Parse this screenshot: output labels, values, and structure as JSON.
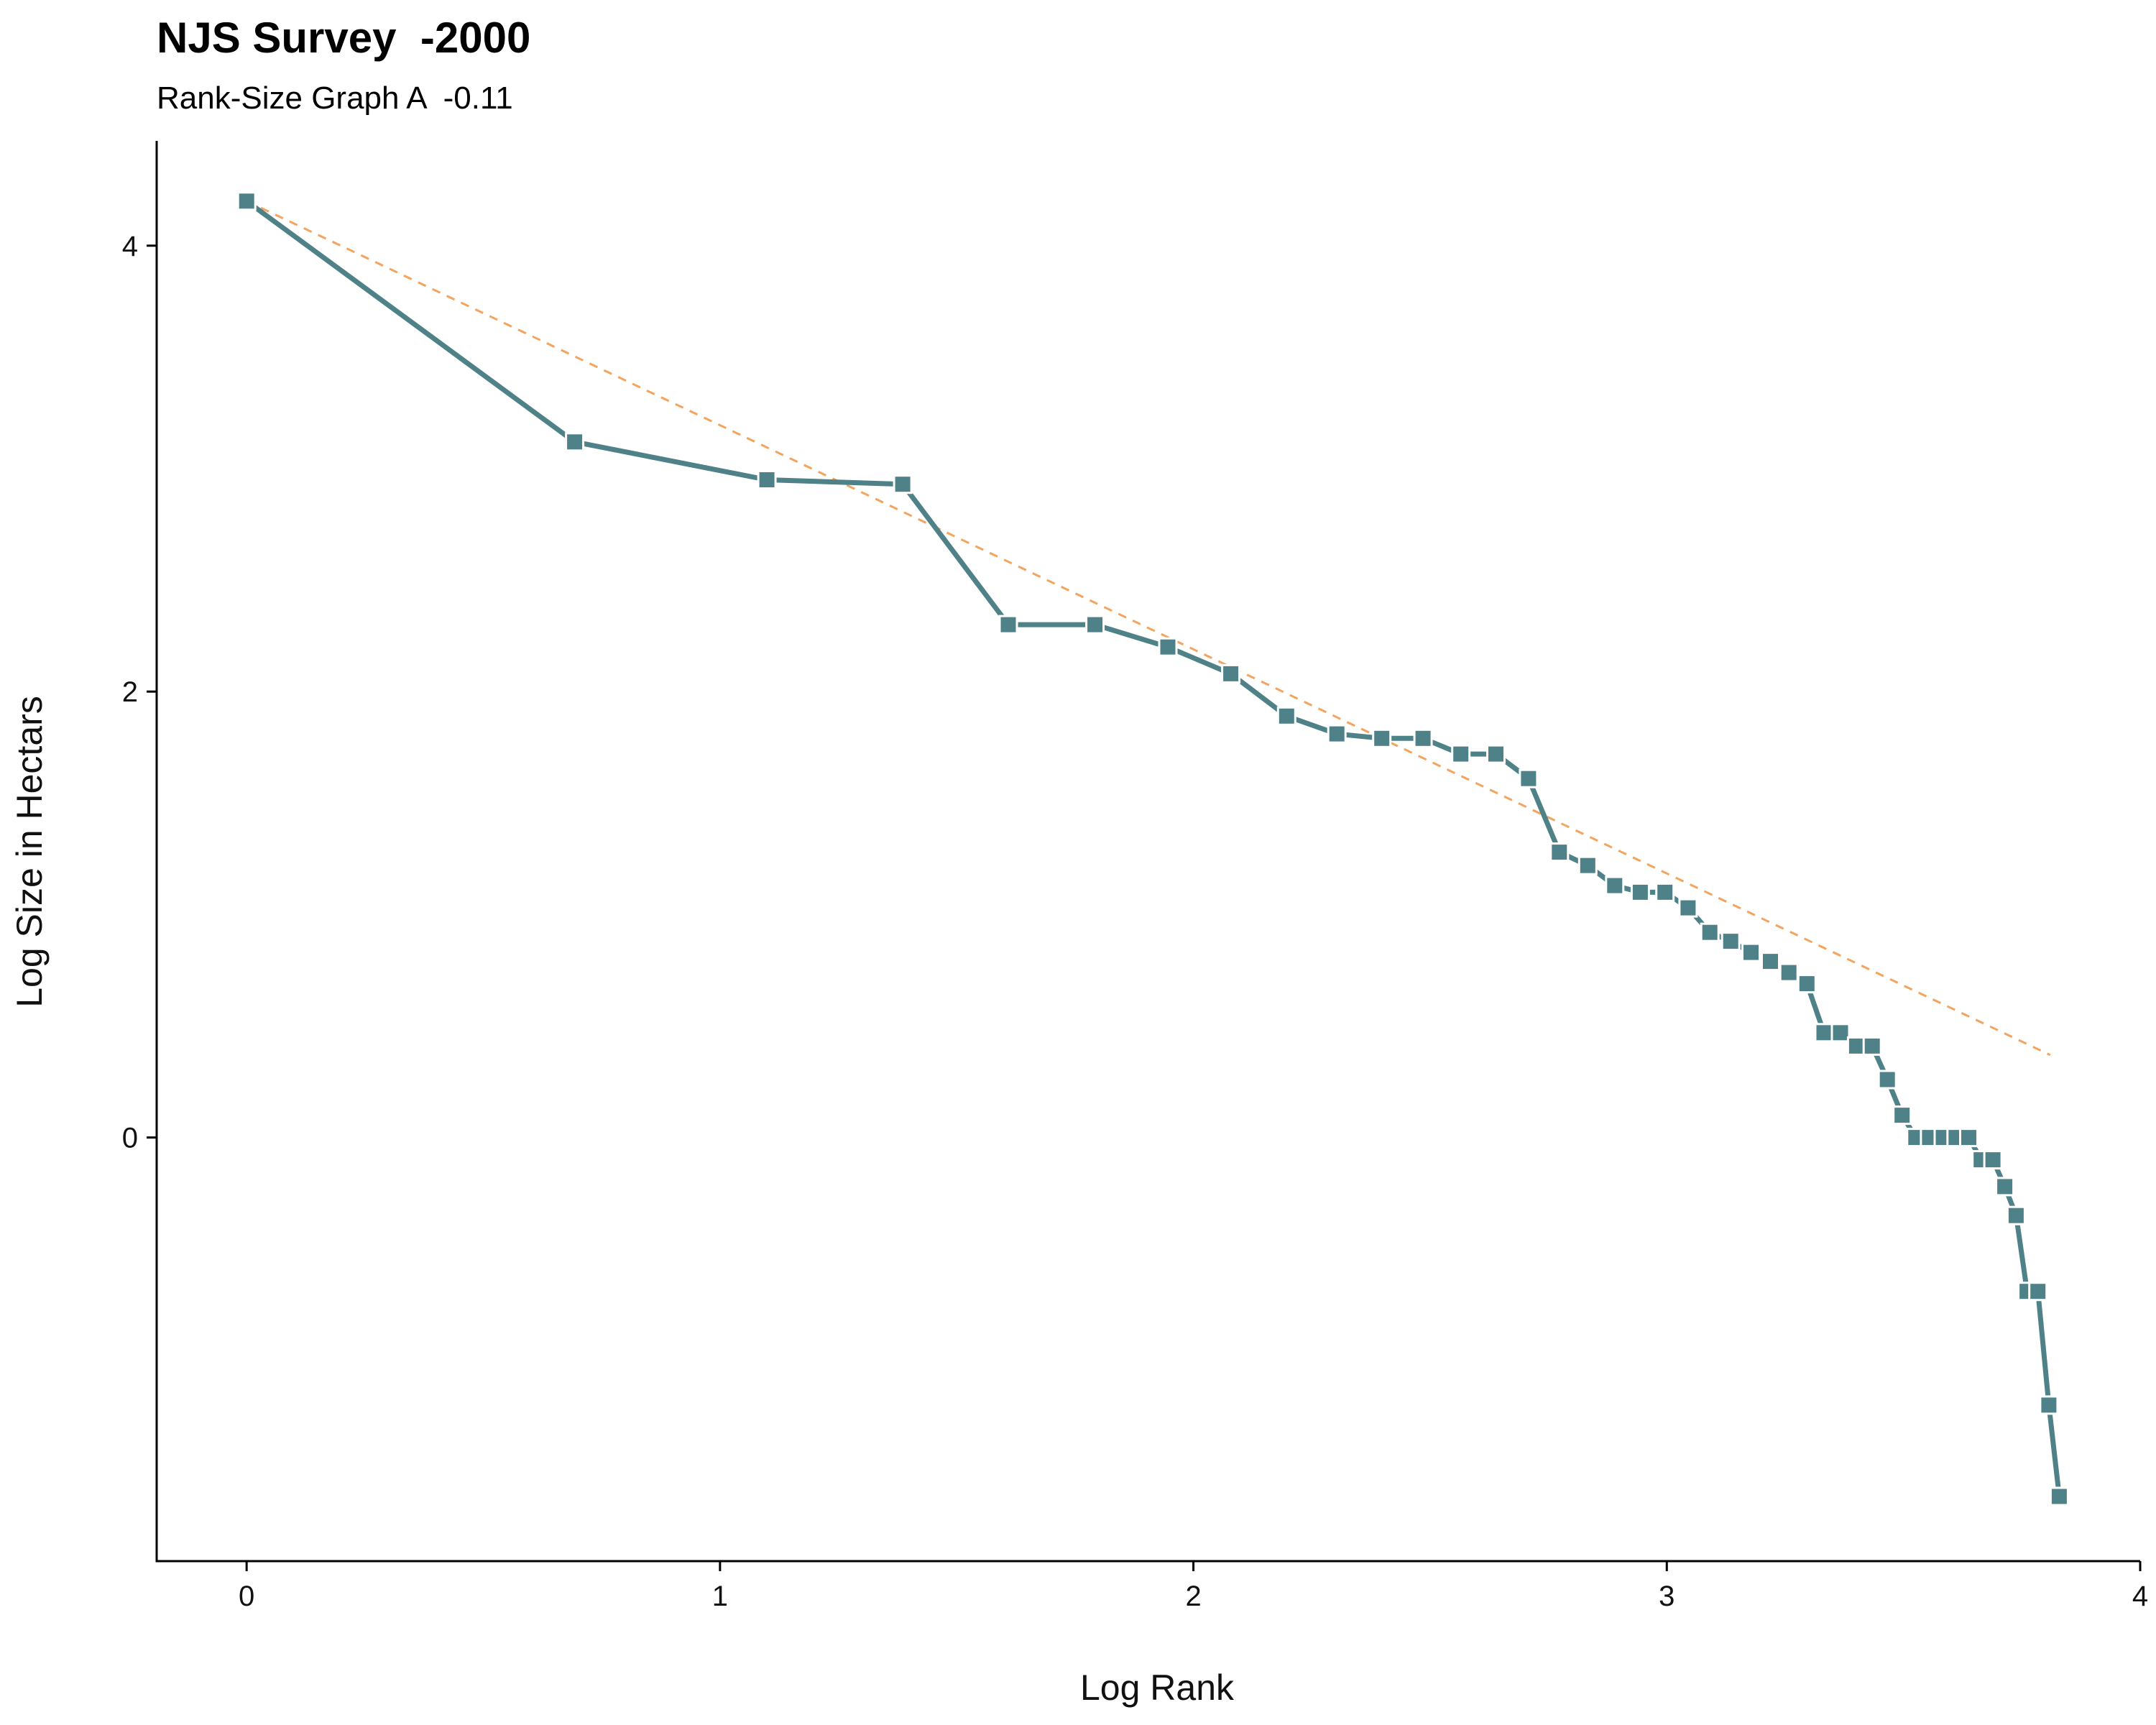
{
  "chart_data": {
    "type": "line",
    "title": "NJS Survey  -2000",
    "subtitle": "Rank-Size Graph A  -0.11",
    "xlabel": "Log Rank",
    "ylabel": "Log Size in Hectars",
    "xlim": [
      -0.19,
      4.0
    ],
    "ylim": [
      -1.9,
      4.47
    ],
    "x_ticks": [
      0,
      1,
      2,
      3,
      4
    ],
    "y_ticks": [
      0,
      2,
      4
    ],
    "grid": false,
    "legend": "none",
    "colors": {
      "observed": "#4f8288",
      "expected": "#f3a45f"
    },
    "series": [
      {
        "style": "solid-line-square-markers",
        "x": [
          0,
          0.693,
          1.099,
          1.386,
          1.609,
          1.792,
          1.946,
          2.079,
          2.197,
          2.303,
          2.398,
          2.485,
          2.565,
          2.639,
          2.708,
          2.773,
          2.833,
          2.89,
          2.944,
          2.996,
          3.045,
          3.091,
          3.135,
          3.178,
          3.219,
          3.258,
          3.296,
          3.332,
          3.367,
          3.401,
          3.434,
          3.466,
          3.497,
          3.526,
          3.555,
          3.584,
          3.611,
          3.638,
          3.664,
          3.689,
          3.714,
          3.738,
          3.761,
          3.784,
          3.807,
          3.829
        ],
        "y": [
          4.2,
          3.12,
          2.95,
          2.93,
          2.3,
          2.3,
          2.2,
          2.08,
          1.89,
          1.81,
          1.79,
          1.79,
          1.72,
          1.72,
          1.61,
          1.28,
          1.22,
          1.13,
          1.1,
          1.1,
          1.03,
          0.92,
          0.88,
          0.83,
          0.79,
          0.74,
          0.69,
          0.47,
          0.47,
          0.41,
          0.41,
          0.26,
          0.1,
          0.0,
          0.0,
          0.0,
          0.0,
          0.0,
          -0.1,
          -0.1,
          -0.22,
          -0.35,
          -0.69,
          -0.69,
          -1.2,
          -1.61
        ]
      },
      {
        "style": "dashed-line",
        "x": [
          0,
          3.81
        ],
        "y": [
          4.2,
          0.37
        ]
      }
    ]
  }
}
